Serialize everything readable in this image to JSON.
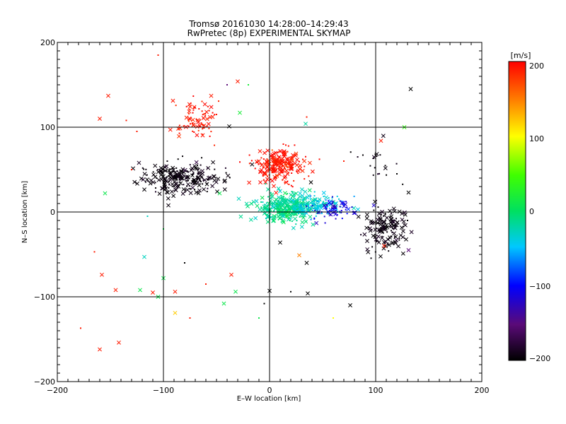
{
  "chart_data": {
    "type": "scatter",
    "title": "Tromsø 20161030 14:28:00–14:29:43",
    "subtitle": "RwPretec (8p) EXPERIMENTAL SKYMAP",
    "xlabel": "E–W location [km]",
    "ylabel": "N–S location [km]",
    "xlim": [
      -200,
      200
    ],
    "ylim": [
      -200,
      200
    ],
    "xticks": [
      "−200",
      "−100",
      "0",
      "100",
      "200"
    ],
    "yticks": [
      "−200",
      "−100",
      "0",
      "100",
      "200"
    ],
    "grid": "lines at ±100 and 0 km",
    "colorbar": {
      "label": "[m/s]",
      "range": [
        -200,
        200
      ],
      "ticks": [
        "200",
        "100",
        "0",
        "−100",
        "−200"
      ],
      "colormap": "black-purple-blue-cyan-green-yellow-red"
    },
    "clusters": [
      {
        "name": "black-west",
        "cx": -85,
        "cy": 40,
        "sx": 18,
        "sy": 8,
        "n": 260,
        "v": -200,
        "sym": "x"
      },
      {
        "name": "red-north",
        "cx": -68,
        "cy": 112,
        "sx": 12,
        "sy": 12,
        "n": 80,
        "v": 195,
        "sym": "dot"
      },
      {
        "name": "red-center",
        "cx": 8,
        "cy": 55,
        "sx": 12,
        "sy": 10,
        "n": 220,
        "v": 195,
        "sym": "x"
      },
      {
        "name": "cyan-green-center",
        "cx": 15,
        "cy": 5,
        "sx": 14,
        "sy": 9,
        "n": 320,
        "v": -15,
        "sym": "x"
      },
      {
        "name": "cyan-east",
        "cx": 45,
        "cy": 8,
        "sx": 14,
        "sy": 6,
        "n": 140,
        "v": -40,
        "sym": "dot"
      },
      {
        "name": "blue-east",
        "cx": 60,
        "cy": 3,
        "sx": 10,
        "sy": 6,
        "n": 70,
        "v": -110,
        "sym": "dot"
      },
      {
        "name": "black-east",
        "cx": 108,
        "cy": -20,
        "sx": 10,
        "sy": 14,
        "n": 160,
        "v": -200,
        "sym": "x"
      },
      {
        "name": "black-east-upper",
        "cx": 100,
        "cy": 60,
        "sx": 8,
        "sy": 12,
        "n": 20,
        "v": -200,
        "sym": "dot"
      }
    ],
    "sparse_points": [
      {
        "x": -160,
        "y": 110,
        "v": 190,
        "sym": "x"
      },
      {
        "x": -152,
        "y": 137,
        "v": 190,
        "sym": "x"
      },
      {
        "x": -155,
        "y": 22,
        "v": 10,
        "sym": "x"
      },
      {
        "x": -158,
        "y": -74,
        "v": 190,
        "sym": "x"
      },
      {
        "x": -145,
        "y": -92,
        "v": 190,
        "sym": "x"
      },
      {
        "x": -160,
        "y": -162,
        "v": 190,
        "sym": "x"
      },
      {
        "x": -142,
        "y": -154,
        "v": 190,
        "sym": "x"
      },
      {
        "x": -118,
        "y": -53,
        "v": -30,
        "sym": "x"
      },
      {
        "x": -122,
        "y": -92,
        "v": 10,
        "sym": "x"
      },
      {
        "x": -110,
        "y": -95,
        "v": 190,
        "sym": "x"
      },
      {
        "x": -105,
        "y": -100,
        "v": 10,
        "sym": "x"
      },
      {
        "x": -100,
        "y": -78,
        "v": 10,
        "sym": "x"
      },
      {
        "x": -89,
        "y": -94,
        "v": 190,
        "sym": "x"
      },
      {
        "x": -89,
        "y": -119,
        "v": 120,
        "sym": "x"
      },
      {
        "x": -55,
        "y": 137,
        "v": 190,
        "sym": "x"
      },
      {
        "x": -38,
        "y": 101,
        "v": -200,
        "sym": "x"
      },
      {
        "x": -30,
        "y": 154,
        "v": 190,
        "sym": "x"
      },
      {
        "x": -28,
        "y": 117,
        "v": 20,
        "sym": "x"
      },
      {
        "x": -47,
        "y": 22,
        "v": 10,
        "sym": "x"
      },
      {
        "x": -36,
        "y": -74,
        "v": 190,
        "sym": "x"
      },
      {
        "x": -43,
        "y": -108,
        "v": 10,
        "sym": "x"
      },
      {
        "x": -32,
        "y": -94,
        "v": 10,
        "sym": "x"
      },
      {
        "x": 0,
        "y": -93,
        "v": -200,
        "sym": "x"
      },
      {
        "x": 34,
        "y": 104,
        "v": -20,
        "sym": "x"
      },
      {
        "x": 39,
        "y": 35,
        "v": -200,
        "sym": "x"
      },
      {
        "x": 35,
        "y": -60,
        "v": -200,
        "sym": "x"
      },
      {
        "x": 36,
        "y": -96,
        "v": -200,
        "sym": "x"
      },
      {
        "x": 28,
        "y": -51,
        "v": 150,
        "sym": "x"
      },
      {
        "x": 10,
        "y": -36,
        "v": -200,
        "sym": "x"
      },
      {
        "x": 76,
        "y": -110,
        "v": -200,
        "sym": "x"
      },
      {
        "x": 105,
        "y": 84,
        "v": 190,
        "sym": "x"
      },
      {
        "x": 127,
        "y": 100,
        "v": 40,
        "sym": "x"
      },
      {
        "x": 133,
        "y": 145,
        "v": -200,
        "sym": "x"
      },
      {
        "x": 131,
        "y": 23,
        "v": -200,
        "sym": "x"
      },
      {
        "x": 131,
        "y": -45,
        "v": -150,
        "sym": "x"
      },
      {
        "x": 108,
        "y": -40,
        "v": 190,
        "sym": "x"
      },
      {
        "x": -50,
        "y": 115,
        "v": 190,
        "sym": "dot"
      },
      {
        "x": -125,
        "y": 95,
        "v": 190,
        "sym": "dot"
      },
      {
        "x": -135,
        "y": 108,
        "v": 190,
        "sym": "dot"
      },
      {
        "x": -130,
        "y": 50,
        "v": 190,
        "sym": "dot"
      },
      {
        "x": -165,
        "y": -47,
        "v": 190,
        "sym": "dot"
      },
      {
        "x": -178,
        "y": -137,
        "v": 190,
        "sym": "dot"
      },
      {
        "x": -105,
        "y": 185,
        "v": 190,
        "sym": "dot"
      },
      {
        "x": -75,
        "y": -125,
        "v": 190,
        "sym": "dot"
      },
      {
        "x": -60,
        "y": -85,
        "v": 190,
        "sym": "dot"
      },
      {
        "x": -80,
        "y": -60,
        "v": -200,
        "sym": "dot"
      },
      {
        "x": -10,
        "y": -125,
        "v": 10,
        "sym": "dot"
      },
      {
        "x": -5,
        "y": -108,
        "v": -200,
        "sym": "dot"
      },
      {
        "x": 60,
        "y": -125,
        "v": 100,
        "sym": "dot"
      },
      {
        "x": 20,
        "y": -94,
        "v": -200,
        "sym": "dot"
      },
      {
        "x": 35,
        "y": 112,
        "v": 190,
        "sym": "dot"
      },
      {
        "x": 70,
        "y": 60,
        "v": 190,
        "sym": "dot"
      },
      {
        "x": -20,
        "y": 150,
        "v": 20,
        "sym": "dot"
      },
      {
        "x": -40,
        "y": 150,
        "v": -150,
        "sym": "dot"
      },
      {
        "x": 120,
        "y": 45,
        "v": -200,
        "sym": "dot"
      },
      {
        "x": 130,
        "y": -10,
        "v": -200,
        "sym": "dot"
      },
      {
        "x": -115,
        "y": -5,
        "v": -30,
        "sym": "dot"
      },
      {
        "x": -100,
        "y": -20,
        "v": 10,
        "sym": "dot"
      }
    ]
  }
}
